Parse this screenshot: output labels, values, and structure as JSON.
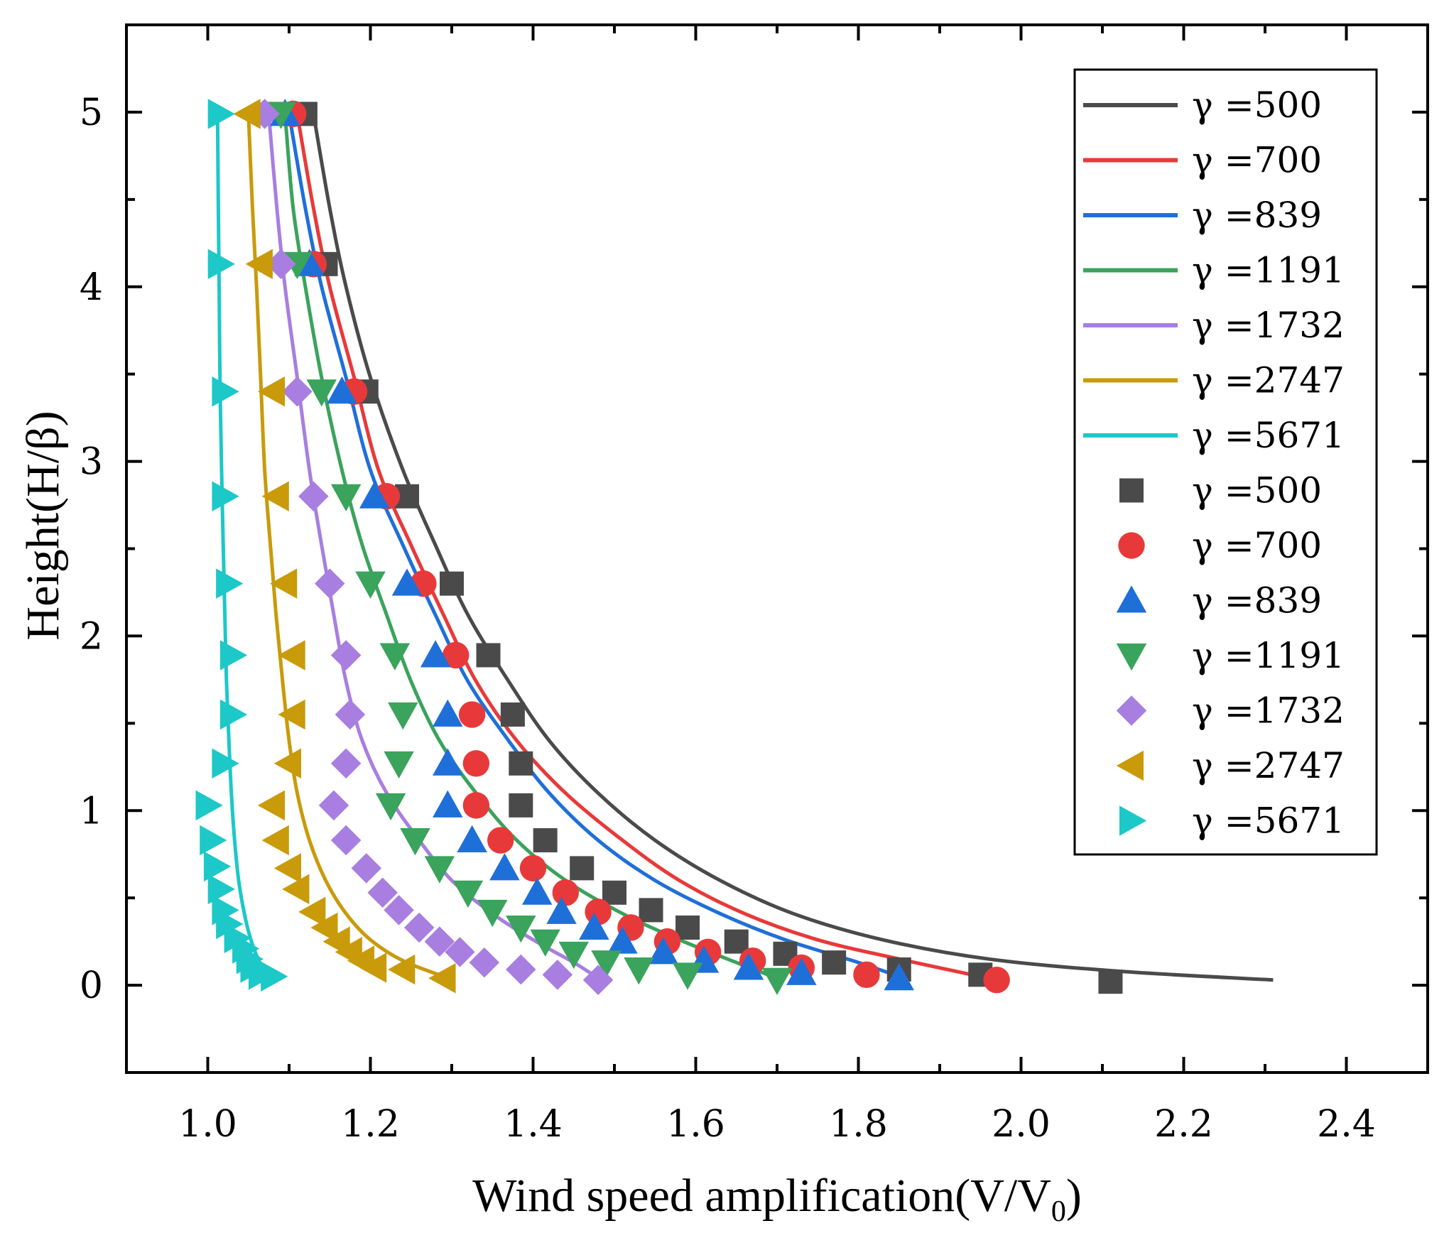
{
  "chart_data": {
    "type": "line",
    "xlabel": "Wind speed amplification(V/V",
    "xlabel_sub": "0",
    "xlabel_end": ")",
    "ylabel": "Height(H/β)",
    "xlim": [
      0.9,
      2.5
    ],
    "ylim": [
      -0.5,
      5.5
    ],
    "xticks": [
      "1.0",
      "1.2",
      "1.4",
      "1.6",
      "1.8",
      "2.0",
      "2.2",
      "2.4"
    ],
    "xtick_values": [
      1.0,
      1.2,
      1.4,
      1.6,
      1.8,
      2.0,
      2.2,
      2.4
    ],
    "yticks": [
      "0",
      "1",
      "2",
      "3",
      "4",
      "5"
    ],
    "ytick_values": [
      0,
      1,
      2,
      3,
      4,
      5
    ],
    "legend_position": "top-right",
    "grid": false,
    "legend_lines": [
      {
        "label": "γ =500",
        "color": "#4a4a4a"
      },
      {
        "label": "γ =700",
        "color": "#e8393a"
      },
      {
        "label": "γ =839",
        "color": "#1f6fd9"
      },
      {
        "label": "γ =1191",
        "color": "#3aa35c"
      },
      {
        "label": "γ =1732",
        "color": "#a87ee0"
      },
      {
        "label": "γ =2747",
        "color": "#c99a0a"
      },
      {
        "label": "γ =5671",
        "color": "#1cc8c8"
      }
    ],
    "legend_markers": [
      {
        "label": "γ =500",
        "color": "#4a4a4a",
        "marker": "square"
      },
      {
        "label": "γ =700",
        "color": "#e8393a",
        "marker": "circle"
      },
      {
        "label": "γ =839",
        "color": "#1f6fd9",
        "marker": "triangle-up"
      },
      {
        "label": "γ =1191",
        "color": "#3aa35c",
        "marker": "triangle-down"
      },
      {
        "label": "γ =1732",
        "color": "#a87ee0",
        "marker": "diamond"
      },
      {
        "label": "γ =2747",
        "color": "#c99a0a",
        "marker": "triangle-left"
      },
      {
        "label": "γ =5671",
        "color": "#1cc8c8",
        "marker": "triangle-right"
      }
    ],
    "fit_curves": [
      {
        "name": "γ =500",
        "color": "#4a4a4a",
        "points": [
          [
            1.13,
            4.99
          ],
          [
            1.15,
            4.45
          ],
          [
            1.17,
            4.0
          ],
          [
            1.2,
            3.48
          ],
          [
            1.24,
            2.95
          ],
          [
            1.28,
            2.52
          ],
          [
            1.32,
            2.12
          ],
          [
            1.37,
            1.74
          ],
          [
            1.42,
            1.4
          ],
          [
            1.48,
            1.1
          ],
          [
            1.55,
            0.83
          ],
          [
            1.63,
            0.6
          ],
          [
            1.72,
            0.41
          ],
          [
            1.83,
            0.26
          ],
          [
            1.96,
            0.15
          ],
          [
            2.12,
            0.08
          ],
          [
            2.31,
            0.03
          ]
        ]
      },
      {
        "name": "γ =700",
        "color": "#e8393a",
        "points": [
          [
            1.11,
            4.99
          ],
          [
            1.13,
            4.45
          ],
          [
            1.15,
            4.0
          ],
          [
            1.18,
            3.48
          ],
          [
            1.21,
            2.95
          ],
          [
            1.25,
            2.52
          ],
          [
            1.29,
            2.12
          ],
          [
            1.33,
            1.74
          ],
          [
            1.38,
            1.4
          ],
          [
            1.44,
            1.1
          ],
          [
            1.51,
            0.83
          ],
          [
            1.58,
            0.6
          ],
          [
            1.66,
            0.41
          ],
          [
            1.75,
            0.26
          ],
          [
            1.85,
            0.15
          ],
          [
            1.96,
            0.04
          ]
        ]
      },
      {
        "name": "γ =839",
        "color": "#1f6fd9",
        "points": [
          [
            1.1,
            4.99
          ],
          [
            1.12,
            4.45
          ],
          [
            1.14,
            4.0
          ],
          [
            1.17,
            3.48
          ],
          [
            1.2,
            2.95
          ],
          [
            1.24,
            2.52
          ],
          [
            1.28,
            2.12
          ],
          [
            1.32,
            1.74
          ],
          [
            1.37,
            1.4
          ],
          [
            1.42,
            1.1
          ],
          [
            1.48,
            0.83
          ],
          [
            1.55,
            0.6
          ],
          [
            1.63,
            0.41
          ],
          [
            1.71,
            0.26
          ],
          [
            1.8,
            0.13
          ],
          [
            1.85,
            0.05
          ]
        ]
      },
      {
        "name": "γ =1191",
        "color": "#3aa35c",
        "points": [
          [
            1.095,
            4.99
          ],
          [
            1.105,
            4.45
          ],
          [
            1.12,
            4.0
          ],
          [
            1.14,
            3.48
          ],
          [
            1.165,
            2.95
          ],
          [
            1.19,
            2.52
          ],
          [
            1.22,
            2.12
          ],
          [
            1.25,
            1.74
          ],
          [
            1.285,
            1.4
          ],
          [
            1.33,
            1.1
          ],
          [
            1.38,
            0.83
          ],
          [
            1.44,
            0.6
          ],
          [
            1.51,
            0.41
          ],
          [
            1.58,
            0.26
          ],
          [
            1.65,
            0.13
          ],
          [
            1.7,
            0.04
          ]
        ]
      },
      {
        "name": "γ =1732",
        "color": "#a87ee0",
        "points": [
          [
            1.075,
            4.99
          ],
          [
            1.085,
            4.45
          ],
          [
            1.095,
            4.0
          ],
          [
            1.11,
            3.48
          ],
          [
            1.125,
            2.95
          ],
          [
            1.14,
            2.52
          ],
          [
            1.155,
            2.12
          ],
          [
            1.17,
            1.74
          ],
          [
            1.19,
            1.4
          ],
          [
            1.22,
            1.1
          ],
          [
            1.26,
            0.83
          ],
          [
            1.3,
            0.6
          ],
          [
            1.35,
            0.41
          ],
          [
            1.4,
            0.26
          ],
          [
            1.45,
            0.13
          ],
          [
            1.48,
            0.04
          ]
        ]
      },
      {
        "name": "γ =2747",
        "color": "#c99a0a",
        "points": [
          [
            1.05,
            4.99
          ],
          [
            1.055,
            4.45
          ],
          [
            1.06,
            4.0
          ],
          [
            1.065,
            3.48
          ],
          [
            1.07,
            2.95
          ],
          [
            1.077,
            2.52
          ],
          [
            1.084,
            2.12
          ],
          [
            1.092,
            1.74
          ],
          [
            1.1,
            1.4
          ],
          [
            1.11,
            1.1
          ],
          [
            1.125,
            0.83
          ],
          [
            1.145,
            0.6
          ],
          [
            1.17,
            0.41
          ],
          [
            1.2,
            0.26
          ],
          [
            1.24,
            0.14
          ],
          [
            1.29,
            0.05
          ]
        ]
      },
      {
        "name": "γ =5671",
        "color": "#1cc8c8",
        "points": [
          [
            1.012,
            4.99
          ],
          [
            1.013,
            4.45
          ],
          [
            1.014,
            4.0
          ],
          [
            1.015,
            3.48
          ],
          [
            1.017,
            2.95
          ],
          [
            1.019,
            2.52
          ],
          [
            1.021,
            2.12
          ],
          [
            1.023,
            1.74
          ],
          [
            1.026,
            1.4
          ],
          [
            1.029,
            1.1
          ],
          [
            1.033,
            0.83
          ],
          [
            1.038,
            0.6
          ],
          [
            1.045,
            0.41
          ],
          [
            1.053,
            0.26
          ],
          [
            1.063,
            0.14
          ],
          [
            1.075,
            0.05
          ]
        ]
      }
    ],
    "marker_series": [
      {
        "name": "γ =500",
        "color": "#4a4a4a",
        "marker": "square",
        "points": [
          [
            1.12,
            4.99
          ],
          [
            1.145,
            4.13
          ],
          [
            1.195,
            3.4
          ],
          [
            1.245,
            2.8
          ],
          [
            1.3,
            2.3
          ],
          [
            1.345,
            1.89
          ],
          [
            1.375,
            1.55
          ],
          [
            1.385,
            1.27
          ],
          [
            1.385,
            1.03
          ],
          [
            1.415,
            0.83
          ],
          [
            1.46,
            0.67
          ],
          [
            1.5,
            0.53
          ],
          [
            1.545,
            0.43
          ],
          [
            1.59,
            0.33
          ],
          [
            1.65,
            0.25
          ],
          [
            1.71,
            0.18
          ],
          [
            1.77,
            0.13
          ],
          [
            1.85,
            0.09
          ],
          [
            1.95,
            0.06
          ],
          [
            2.11,
            0.02
          ]
        ]
      },
      {
        "name": "γ =700",
        "color": "#e8393a",
        "points": [
          [
            1.105,
            4.99
          ],
          [
            1.13,
            4.13
          ],
          [
            1.18,
            3.4
          ],
          [
            1.22,
            2.8
          ],
          [
            1.265,
            2.3
          ],
          [
            1.305,
            1.89
          ],
          [
            1.325,
            1.55
          ],
          [
            1.33,
            1.27
          ],
          [
            1.33,
            1.03
          ],
          [
            1.36,
            0.83
          ],
          [
            1.4,
            0.67
          ],
          [
            1.44,
            0.53
          ],
          [
            1.48,
            0.42
          ],
          [
            1.52,
            0.33
          ],
          [
            1.565,
            0.25
          ],
          [
            1.615,
            0.19
          ],
          [
            1.67,
            0.14
          ],
          [
            1.73,
            0.1
          ],
          [
            1.81,
            0.06
          ],
          [
            1.97,
            0.03
          ]
        ],
        "marker": "circle"
      },
      {
        "name": "γ =839",
        "color": "#1f6fd9",
        "marker": "triangle-up",
        "points": [
          [
            1.095,
            4.99
          ],
          [
            1.125,
            4.13
          ],
          [
            1.165,
            3.4
          ],
          [
            1.205,
            2.8
          ],
          [
            1.245,
            2.3
          ],
          [
            1.28,
            1.89
          ],
          [
            1.295,
            1.55
          ],
          [
            1.295,
            1.27
          ],
          [
            1.295,
            1.03
          ],
          [
            1.325,
            0.83
          ],
          [
            1.365,
            0.67
          ],
          [
            1.405,
            0.53
          ],
          [
            1.435,
            0.42
          ],
          [
            1.475,
            0.33
          ],
          [
            1.51,
            0.25
          ],
          [
            1.56,
            0.19
          ],
          [
            1.61,
            0.14
          ],
          [
            1.665,
            0.1
          ],
          [
            1.73,
            0.07
          ],
          [
            1.85,
            0.04
          ]
        ]
      },
      {
        "name": "γ =1191",
        "color": "#3aa35c",
        "marker": "triangle-down",
        "points": [
          [
            1.09,
            4.99
          ],
          [
            1.11,
            4.13
          ],
          [
            1.14,
            3.4
          ],
          [
            1.17,
            2.8
          ],
          [
            1.2,
            2.3
          ],
          [
            1.23,
            1.89
          ],
          [
            1.24,
            1.55
          ],
          [
            1.235,
            1.27
          ],
          [
            1.225,
            1.03
          ],
          [
            1.255,
            0.83
          ],
          [
            1.285,
            0.67
          ],
          [
            1.32,
            0.53
          ],
          [
            1.35,
            0.42
          ],
          [
            1.385,
            0.33
          ],
          [
            1.415,
            0.25
          ],
          [
            1.45,
            0.18
          ],
          [
            1.49,
            0.13
          ],
          [
            1.53,
            0.09
          ],
          [
            1.59,
            0.06
          ],
          [
            1.7,
            0.03
          ]
        ]
      },
      {
        "name": "γ =1732",
        "color": "#a87ee0",
        "marker": "diamond",
        "points": [
          [
            1.07,
            4.99
          ],
          [
            1.09,
            4.13
          ],
          [
            1.11,
            3.4
          ],
          [
            1.13,
            2.8
          ],
          [
            1.15,
            2.3
          ],
          [
            1.17,
            1.89
          ],
          [
            1.175,
            1.55
          ],
          [
            1.17,
            1.27
          ],
          [
            1.155,
            1.03
          ],
          [
            1.17,
            0.83
          ],
          [
            1.195,
            0.67
          ],
          [
            1.215,
            0.53
          ],
          [
            1.235,
            0.43
          ],
          [
            1.26,
            0.33
          ],
          [
            1.285,
            0.25
          ],
          [
            1.31,
            0.19
          ],
          [
            1.34,
            0.13
          ],
          [
            1.385,
            0.09
          ],
          [
            1.43,
            0.06
          ],
          [
            1.48,
            0.03
          ]
        ]
      },
      {
        "name": "γ =2747",
        "color": "#c99a0a",
        "marker": "triangle-left",
        "points": [
          [
            1.05,
            4.99
          ],
          [
            1.065,
            4.13
          ],
          [
            1.08,
            3.4
          ],
          [
            1.085,
            2.8
          ],
          [
            1.095,
            2.3
          ],
          [
            1.105,
            1.89
          ],
          [
            1.105,
            1.55
          ],
          [
            1.1,
            1.27
          ],
          [
            1.08,
            1.03
          ],
          [
            1.085,
            0.83
          ],
          [
            1.1,
            0.67
          ],
          [
            1.11,
            0.55
          ],
          [
            1.13,
            0.42
          ],
          [
            1.145,
            0.33
          ],
          [
            1.16,
            0.25
          ],
          [
            1.175,
            0.19
          ],
          [
            1.19,
            0.14
          ],
          [
            1.205,
            0.1
          ],
          [
            1.24,
            0.09
          ],
          [
            1.29,
            0.04
          ]
        ]
      },
      {
        "name": "γ =5671",
        "color": "#1cc8c8",
        "marker": "triangle-right",
        "points": [
          [
            1.015,
            4.99
          ],
          [
            1.015,
            4.13
          ],
          [
            1.02,
            3.4
          ],
          [
            1.02,
            2.8
          ],
          [
            1.025,
            2.3
          ],
          [
            1.03,
            1.89
          ],
          [
            1.03,
            1.55
          ],
          [
            1.02,
            1.27
          ],
          [
            1.0,
            1.03
          ],
          [
            1.005,
            0.83
          ],
          [
            1.01,
            0.68
          ],
          [
            1.015,
            0.55
          ],
          [
            1.02,
            0.43
          ],
          [
            1.025,
            0.35
          ],
          [
            1.035,
            0.27
          ],
          [
            1.045,
            0.21
          ],
          [
            1.05,
            0.15
          ],
          [
            1.055,
            0.1
          ],
          [
            1.065,
            0.06
          ],
          [
            1.08,
            0.05
          ]
        ]
      }
    ]
  }
}
